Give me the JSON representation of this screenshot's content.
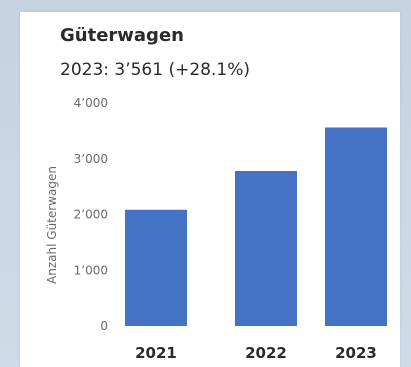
{
  "chart_data": {
    "type": "bar",
    "title": "Güterwagen",
    "subtitle": "2023: 3’561 (+28.1%)",
    "ylabel": "Anzahl Güterwagen",
    "xlabel": "",
    "categories": [
      "2021",
      "2022",
      "2023"
    ],
    "values": [
      2085,
      2780,
      3561
    ],
    "ylim": [
      0,
      4000
    ],
    "yticks": [
      0,
      1000,
      2000,
      3000,
      4000
    ],
    "ytick_labels": [
      "0",
      "1’000",
      "2’000",
      "3’000",
      "4’000"
    ],
    "grid": false,
    "bar_color": "#4472c4"
  }
}
